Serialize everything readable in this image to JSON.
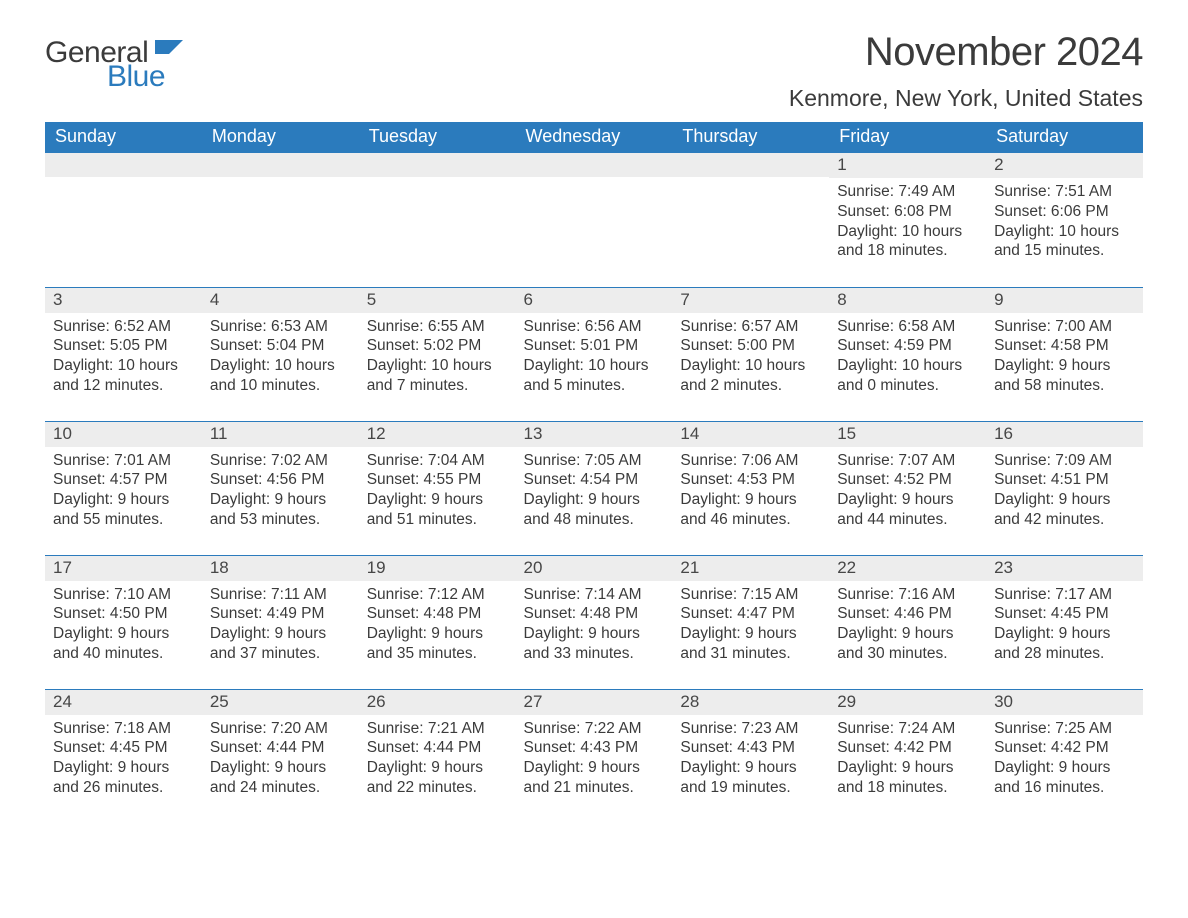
{
  "brand": {
    "general": "General",
    "blue": "Blue",
    "flag_color": "#2b7bbd"
  },
  "title": "November 2024",
  "subtitle": "Kenmore, New York, United States",
  "colors": {
    "header_bg": "#2b7bbd",
    "header_text": "#ffffff",
    "daynum_bg": "#ededed",
    "row_border": "#2b7bbd",
    "body_text": "#3b3b3b"
  },
  "day_headers": [
    "Sunday",
    "Monday",
    "Tuesday",
    "Wednesday",
    "Thursday",
    "Friday",
    "Saturday"
  ],
  "weeks": [
    [
      {
        "empty": true
      },
      {
        "empty": true
      },
      {
        "empty": true
      },
      {
        "empty": true
      },
      {
        "empty": true
      },
      {
        "day": "1",
        "sunrise": "Sunrise: 7:49 AM",
        "sunset": "Sunset: 6:08 PM",
        "daylight1": "Daylight: 10 hours",
        "daylight2": "and 18 minutes."
      },
      {
        "day": "2",
        "sunrise": "Sunrise: 7:51 AM",
        "sunset": "Sunset: 6:06 PM",
        "daylight1": "Daylight: 10 hours",
        "daylight2": "and 15 minutes."
      }
    ],
    [
      {
        "day": "3",
        "sunrise": "Sunrise: 6:52 AM",
        "sunset": "Sunset: 5:05 PM",
        "daylight1": "Daylight: 10 hours",
        "daylight2": "and 12 minutes."
      },
      {
        "day": "4",
        "sunrise": "Sunrise: 6:53 AM",
        "sunset": "Sunset: 5:04 PM",
        "daylight1": "Daylight: 10 hours",
        "daylight2": "and 10 minutes."
      },
      {
        "day": "5",
        "sunrise": "Sunrise: 6:55 AM",
        "sunset": "Sunset: 5:02 PM",
        "daylight1": "Daylight: 10 hours",
        "daylight2": "and 7 minutes."
      },
      {
        "day": "6",
        "sunrise": "Sunrise: 6:56 AM",
        "sunset": "Sunset: 5:01 PM",
        "daylight1": "Daylight: 10 hours",
        "daylight2": "and 5 minutes."
      },
      {
        "day": "7",
        "sunrise": "Sunrise: 6:57 AM",
        "sunset": "Sunset: 5:00 PM",
        "daylight1": "Daylight: 10 hours",
        "daylight2": "and 2 minutes."
      },
      {
        "day": "8",
        "sunrise": "Sunrise: 6:58 AM",
        "sunset": "Sunset: 4:59 PM",
        "daylight1": "Daylight: 10 hours",
        "daylight2": "and 0 minutes."
      },
      {
        "day": "9",
        "sunrise": "Sunrise: 7:00 AM",
        "sunset": "Sunset: 4:58 PM",
        "daylight1": "Daylight: 9 hours",
        "daylight2": "and 58 minutes."
      }
    ],
    [
      {
        "day": "10",
        "sunrise": "Sunrise: 7:01 AM",
        "sunset": "Sunset: 4:57 PM",
        "daylight1": "Daylight: 9 hours",
        "daylight2": "and 55 minutes."
      },
      {
        "day": "11",
        "sunrise": "Sunrise: 7:02 AM",
        "sunset": "Sunset: 4:56 PM",
        "daylight1": "Daylight: 9 hours",
        "daylight2": "and 53 minutes."
      },
      {
        "day": "12",
        "sunrise": "Sunrise: 7:04 AM",
        "sunset": "Sunset: 4:55 PM",
        "daylight1": "Daylight: 9 hours",
        "daylight2": "and 51 minutes."
      },
      {
        "day": "13",
        "sunrise": "Sunrise: 7:05 AM",
        "sunset": "Sunset: 4:54 PM",
        "daylight1": "Daylight: 9 hours",
        "daylight2": "and 48 minutes."
      },
      {
        "day": "14",
        "sunrise": "Sunrise: 7:06 AM",
        "sunset": "Sunset: 4:53 PM",
        "daylight1": "Daylight: 9 hours",
        "daylight2": "and 46 minutes."
      },
      {
        "day": "15",
        "sunrise": "Sunrise: 7:07 AM",
        "sunset": "Sunset: 4:52 PM",
        "daylight1": "Daylight: 9 hours",
        "daylight2": "and 44 minutes."
      },
      {
        "day": "16",
        "sunrise": "Sunrise: 7:09 AM",
        "sunset": "Sunset: 4:51 PM",
        "daylight1": "Daylight: 9 hours",
        "daylight2": "and 42 minutes."
      }
    ],
    [
      {
        "day": "17",
        "sunrise": "Sunrise: 7:10 AM",
        "sunset": "Sunset: 4:50 PM",
        "daylight1": "Daylight: 9 hours",
        "daylight2": "and 40 minutes."
      },
      {
        "day": "18",
        "sunrise": "Sunrise: 7:11 AM",
        "sunset": "Sunset: 4:49 PM",
        "daylight1": "Daylight: 9 hours",
        "daylight2": "and 37 minutes."
      },
      {
        "day": "19",
        "sunrise": "Sunrise: 7:12 AM",
        "sunset": "Sunset: 4:48 PM",
        "daylight1": "Daylight: 9 hours",
        "daylight2": "and 35 minutes."
      },
      {
        "day": "20",
        "sunrise": "Sunrise: 7:14 AM",
        "sunset": "Sunset: 4:48 PM",
        "daylight1": "Daylight: 9 hours",
        "daylight2": "and 33 minutes."
      },
      {
        "day": "21",
        "sunrise": "Sunrise: 7:15 AM",
        "sunset": "Sunset: 4:47 PM",
        "daylight1": "Daylight: 9 hours",
        "daylight2": "and 31 minutes."
      },
      {
        "day": "22",
        "sunrise": "Sunrise: 7:16 AM",
        "sunset": "Sunset: 4:46 PM",
        "daylight1": "Daylight: 9 hours",
        "daylight2": "and 30 minutes."
      },
      {
        "day": "23",
        "sunrise": "Sunrise: 7:17 AM",
        "sunset": "Sunset: 4:45 PM",
        "daylight1": "Daylight: 9 hours",
        "daylight2": "and 28 minutes."
      }
    ],
    [
      {
        "day": "24",
        "sunrise": "Sunrise: 7:18 AM",
        "sunset": "Sunset: 4:45 PM",
        "daylight1": "Daylight: 9 hours",
        "daylight2": "and 26 minutes."
      },
      {
        "day": "25",
        "sunrise": "Sunrise: 7:20 AM",
        "sunset": "Sunset: 4:44 PM",
        "daylight1": "Daylight: 9 hours",
        "daylight2": "and 24 minutes."
      },
      {
        "day": "26",
        "sunrise": "Sunrise: 7:21 AM",
        "sunset": "Sunset: 4:44 PM",
        "daylight1": "Daylight: 9 hours",
        "daylight2": "and 22 minutes."
      },
      {
        "day": "27",
        "sunrise": "Sunrise: 7:22 AM",
        "sunset": "Sunset: 4:43 PM",
        "daylight1": "Daylight: 9 hours",
        "daylight2": "and 21 minutes."
      },
      {
        "day": "28",
        "sunrise": "Sunrise: 7:23 AM",
        "sunset": "Sunset: 4:43 PM",
        "daylight1": "Daylight: 9 hours",
        "daylight2": "and 19 minutes."
      },
      {
        "day": "29",
        "sunrise": "Sunrise: 7:24 AM",
        "sunset": "Sunset: 4:42 PM",
        "daylight1": "Daylight: 9 hours",
        "daylight2": "and 18 minutes."
      },
      {
        "day": "30",
        "sunrise": "Sunrise: 7:25 AM",
        "sunset": "Sunset: 4:42 PM",
        "daylight1": "Daylight: 9 hours",
        "daylight2": "and 16 minutes."
      }
    ]
  ]
}
